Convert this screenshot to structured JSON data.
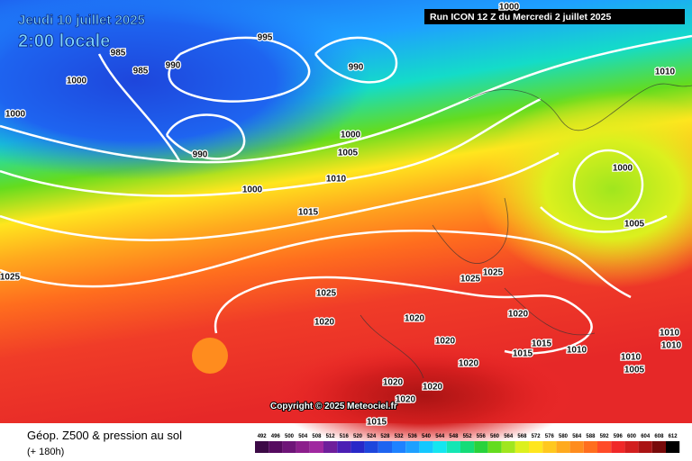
{
  "header": {
    "date": "Jeudi 10 juillet 2025",
    "time": "2:00 locale",
    "run": "Run ICON 12 Z du Mercredi 2 juillet 2025"
  },
  "copyright": "Copyright © 2025 Meteociel.fr",
  "footer": {
    "title": "Géop. Z500 & pression au sol",
    "lead": "(+ 180h)"
  },
  "isobar_labels": [
    985,
    985,
    990,
    995,
    1000,
    990,
    1010,
    1000,
    1000,
    990,
    1000,
    1005,
    1010,
    1000,
    1015,
    1000,
    1005,
    1025,
    1025,
    1025,
    1025,
    1020,
    1020,
    1020,
    1020,
    1015,
    1015,
    1010,
    1010,
    1010,
    1010,
    1005,
    1020,
    1020,
    1020,
    1020,
    1015
  ],
  "color_scale": {
    "labels": [
      492,
      496,
      500,
      504,
      508,
      512,
      516,
      520,
      524,
      528,
      532,
      536,
      540,
      544,
      548,
      552,
      556,
      560,
      564,
      568,
      572,
      576,
      580,
      584,
      588,
      592,
      596,
      600,
      604,
      608,
      612
    ],
    "colors": [
      "#3c0a46",
      "#550a5f",
      "#6e1478",
      "#8c1e8c",
      "#a028a0",
      "#6e1e9b",
      "#4b1eb4",
      "#2828c8",
      "#1e46dc",
      "#1e64f0",
      "#1e82ff",
      "#1ea0ff",
      "#14c8ff",
      "#14e6f0",
      "#14e6b4",
      "#14dc78",
      "#28d23c",
      "#64dc1e",
      "#a0e61e",
      "#dcf01e",
      "#ffe61e",
      "#ffc81e",
      "#ffaa1e",
      "#ff8c1e",
      "#ff6e1e",
      "#ff4b28",
      "#f02828",
      "#d21e1e",
      "#aa1414",
      "#780a0a",
      "#000000"
    ]
  }
}
